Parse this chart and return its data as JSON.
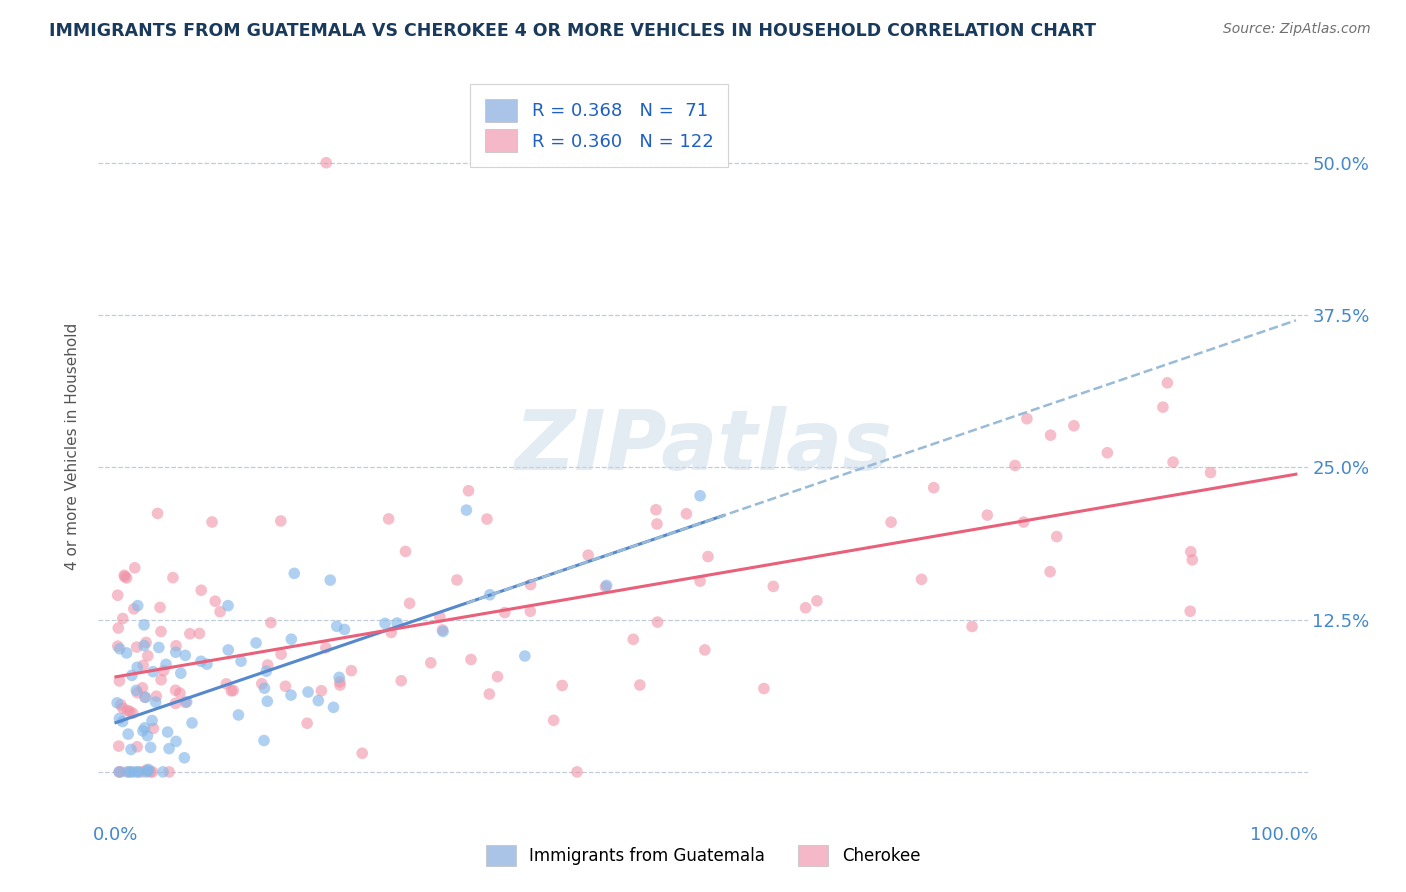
{
  "title": "IMMIGRANTS FROM GUATEMALA VS CHEROKEE 4 OR MORE VEHICLES IN HOUSEHOLD CORRELATION CHART",
  "source": "Source: ZipAtlas.com",
  "ylabel": "4 or more Vehicles in Household",
  "ytick_labels": [
    "",
    "12.5%",
    "25.0%",
    "37.5%",
    "50.0%"
  ],
  "ytick_values": [
    0.0,
    0.125,
    0.25,
    0.375,
    0.5
  ],
  "watermark": "ZIPatlas",
  "blue_color": "#85b8e8",
  "pink_color": "#f093a8",
  "blue_line_color": "#5588cc",
  "blue_dash_color": "#99bbd8",
  "pink_line_color": "#e8607a",
  "title_color": "#1a3a5c",
  "axis_label_color": "#4488cc",
  "ylabel_color": "#555555"
}
